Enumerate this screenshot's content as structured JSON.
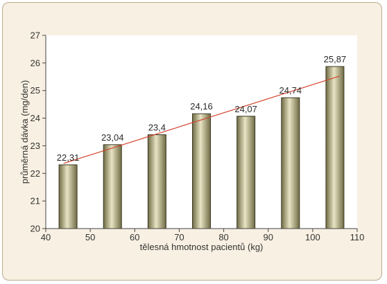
{
  "chart_data": {
    "type": "bar",
    "xlabel": "tělesná hmotnost pacientů (kg)",
    "ylabel": "průměrná dávka (mg/den)",
    "xlim": [
      40,
      110
    ],
    "ylim": [
      20,
      27
    ],
    "x_ticks": [
      "40",
      "50",
      "60",
      "70",
      "80",
      "90",
      "100",
      "110"
    ],
    "y_ticks": [
      "20",
      "21",
      "22",
      "23",
      "24",
      "25",
      "26",
      "27"
    ],
    "x": [
      45,
      55,
      65,
      75,
      85,
      95,
      105
    ],
    "values": [
      22.31,
      23.04,
      23.4,
      24.16,
      24.07,
      24.74,
      25.87
    ],
    "value_labels": [
      "22,31",
      "23,04",
      "23,4",
      "24,16",
      "24,07",
      "24,74",
      "25,87"
    ],
    "trendline": {
      "type": "linear",
      "x": [
        44,
        106
      ],
      "y": [
        22.36,
        25.52
      ]
    },
    "grid": false,
    "legend": "none",
    "colors": {
      "background": "#f8f0e2",
      "plot_background": "#ffffff",
      "bar_dark": "#6f6b44",
      "bar_light": "#e8e4c4",
      "trendline": "#d3432c",
      "axis": "#444444"
    }
  }
}
